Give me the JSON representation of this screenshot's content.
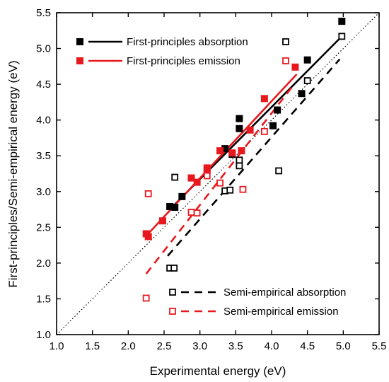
{
  "chart_data": {
    "type": "scatter",
    "xlabel": "Experimental energy (eV)",
    "ylabel": "First-principles/Semi-empirical energy (eV)",
    "xlim": [
      1.0,
      5.5
    ],
    "ylim": [
      1.0,
      5.5
    ],
    "ticks": [
      "1.0",
      "1.5",
      "2.0",
      "2.5",
      "3.0",
      "3.5",
      "4.0",
      "4.5",
      "5.0",
      "5.5"
    ],
    "grid": false,
    "legend_position": "top-left and bottom-right",
    "reference_line": {
      "style": "dotted",
      "x": [
        1.0,
        5.5
      ],
      "y": [
        1.0,
        5.5
      ]
    },
    "series": [
      {
        "name": "First-principles absorption",
        "color": "#000000",
        "marker": "filled-square",
        "points": [
          {
            "x": 2.58,
            "y": 2.79
          },
          {
            "x": 2.65,
            "y": 2.78
          },
          {
            "x": 2.75,
            "y": 2.93
          },
          {
            "x": 3.35,
            "y": 3.6
          },
          {
            "x": 3.45,
            "y": 3.52
          },
          {
            "x": 3.55,
            "y": 3.88
          },
          {
            "x": 3.55,
            "y": 4.02
          },
          {
            "x": 4.02,
            "y": 3.92
          },
          {
            "x": 4.08,
            "y": 4.14
          },
          {
            "x": 4.42,
            "y": 4.37
          },
          {
            "x": 4.5,
            "y": 4.84
          },
          {
            "x": 4.98,
            "y": 5.38
          }
        ],
        "fit": {
          "x": [
            2.6,
            4.98
          ],
          "y": [
            2.77,
            5.17
          ]
        }
      },
      {
        "name": "First-principles emission",
        "color": "#e8191e",
        "marker": "filled-square",
        "points": [
          {
            "x": 2.25,
            "y": 2.41
          },
          {
            "x": 2.28,
            "y": 2.37
          },
          {
            "x": 2.48,
            "y": 2.59
          },
          {
            "x": 2.88,
            "y": 3.19
          },
          {
            "x": 2.96,
            "y": 3.13
          },
          {
            "x": 3.1,
            "y": 3.3
          },
          {
            "x": 3.1,
            "y": 3.33
          },
          {
            "x": 3.28,
            "y": 3.57
          },
          {
            "x": 3.45,
            "y": 3.54
          },
          {
            "x": 3.58,
            "y": 3.57
          },
          {
            "x": 3.7,
            "y": 3.86
          },
          {
            "x": 3.9,
            "y": 4.3
          },
          {
            "x": 4.33,
            "y": 4.74
          }
        ],
        "fit": {
          "x": [
            2.25,
            4.35
          ],
          "y": [
            2.38,
            4.64
          ]
        }
      },
      {
        "name": "Semi-empirical absorption",
        "color": "#000000",
        "marker": "open-square",
        "points": [
          {
            "x": 2.58,
            "y": 1.93
          },
          {
            "x": 2.64,
            "y": 1.93
          },
          {
            "x": 2.65,
            "y": 3.2
          },
          {
            "x": 3.35,
            "y": 3.01
          },
          {
            "x": 3.42,
            "y": 3.02
          },
          {
            "x": 3.55,
            "y": 3.36
          },
          {
            "x": 3.55,
            "y": 3.44
          },
          {
            "x": 4.1,
            "y": 3.29
          },
          {
            "x": 4.5,
            "y": 4.55
          },
          {
            "x": 4.98,
            "y": 5.17
          }
        ],
        "fit": {
          "x": [
            2.55,
            4.95
          ],
          "y": [
            2.1,
            4.85
          ]
        }
      },
      {
        "name": "Semi-empirical emission",
        "color": "#e8191e",
        "marker": "open-square",
        "points": [
          {
            "x": 2.25,
            "y": 1.51
          },
          {
            "x": 2.28,
            "y": 2.97
          },
          {
            "x": 2.88,
            "y": 2.71
          },
          {
            "x": 2.96,
            "y": 2.7
          },
          {
            "x": 3.1,
            "y": 3.22
          },
          {
            "x": 3.28,
            "y": 3.12
          },
          {
            "x": 3.6,
            "y": 3.03
          },
          {
            "x": 3.9,
            "y": 3.84
          }
        ],
        "fit": {
          "x": [
            2.25,
            4.3
          ],
          "y": [
            1.85,
            4.48
          ]
        }
      }
    ]
  },
  "legend": {
    "top": [
      {
        "label": "First-principles absorption",
        "series": 0
      },
      {
        "label": "First-principles emission",
        "series": 1
      }
    ],
    "bottom": [
      {
        "label": "Semi-empirical absorption",
        "series": 2
      },
      {
        "label": "Semi-empirical emission",
        "series": 3
      }
    ]
  }
}
